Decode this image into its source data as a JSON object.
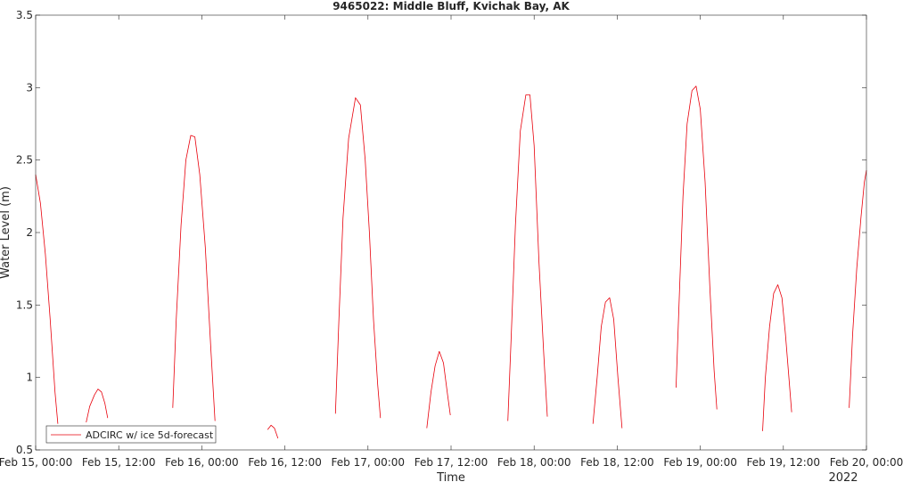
{
  "chart_data": {
    "type": "line",
    "title": "9465022: Middle Bluff, Kvichak Bay, AK",
    "xlabel": "Time",
    "ylabel": "Water Level (m)",
    "ylim": [
      0.5,
      3.5
    ],
    "yticks": [
      0.5,
      1,
      1.5,
      2,
      2.5,
      3,
      3.5
    ],
    "ytick_labels": [
      "0.5",
      "1",
      "1.5",
      "2",
      "2.5",
      "3",
      "3.5"
    ],
    "xlim_hours": [
      0,
      120
    ],
    "xtick_labels": [
      "Feb 15, 00:00",
      "Feb 15, 12:00",
      "Feb 16, 00:00",
      "Feb 16, 12:00",
      "Feb 17, 00:00",
      "Feb 17, 12:00",
      "Feb 18, 00:00",
      "Feb 18, 12:00",
      "Feb 19, 00:00",
      "Feb 19, 12:00",
      "Feb 20, 00:00"
    ],
    "xaxis_secondary_label": "2022",
    "grid": false,
    "legend_position": "bottom-left",
    "series": [
      {
        "name": "ADCIRC w/ ice 5d-forecast",
        "color": "#e8000b",
        "segments": [
          [
            [
              0.0,
              2.4
            ],
            [
              0.7,
              2.2
            ],
            [
              1.4,
              1.85
            ],
            [
              2.1,
              1.4
            ],
            [
              2.8,
              0.9
            ],
            [
              3.2,
              0.68
            ]
          ],
          [
            [
              7.3,
              0.69
            ],
            [
              7.8,
              0.8
            ],
            [
              8.5,
              0.88
            ],
            [
              9.0,
              0.92
            ],
            [
              9.5,
              0.9
            ],
            [
              10.0,
              0.82
            ],
            [
              10.4,
              0.72
            ]
          ],
          [
            [
              19.8,
              0.79
            ],
            [
              20.3,
              1.4
            ],
            [
              21.0,
              2.05
            ],
            [
              21.7,
              2.5
            ],
            [
              22.4,
              2.67
            ],
            [
              23.0,
              2.66
            ],
            [
              23.7,
              2.4
            ],
            [
              24.5,
              1.9
            ],
            [
              25.3,
              1.2
            ],
            [
              25.9,
              0.7
            ]
          ],
          [
            [
              33.5,
              0.64
            ],
            [
              34.0,
              0.67
            ],
            [
              34.5,
              0.65
            ],
            [
              35.0,
              0.58
            ]
          ],
          [
            [
              43.3,
              0.75
            ],
            [
              43.8,
              1.4
            ],
            [
              44.4,
              2.1
            ],
            [
              45.2,
              2.65
            ],
            [
              46.2,
              2.93
            ],
            [
              46.9,
              2.88
            ],
            [
              47.6,
              2.5
            ],
            [
              48.2,
              2.0
            ],
            [
              48.8,
              1.4
            ],
            [
              49.4,
              0.95
            ],
            [
              49.8,
              0.72
            ]
          ],
          [
            [
              56.5,
              0.65
            ],
            [
              57.1,
              0.9
            ],
            [
              57.7,
              1.08
            ],
            [
              58.3,
              1.18
            ],
            [
              58.9,
              1.1
            ],
            [
              59.5,
              0.88
            ],
            [
              59.9,
              0.74
            ]
          ],
          [
            [
              68.2,
              0.7
            ],
            [
              68.7,
              1.3
            ],
            [
              69.3,
              2.05
            ],
            [
              70.0,
              2.7
            ],
            [
              70.8,
              2.95
            ],
            [
              71.4,
              2.95
            ],
            [
              72.0,
              2.6
            ],
            [
              72.7,
              1.8
            ],
            [
              73.4,
              1.15
            ],
            [
              73.9,
              0.73
            ]
          ],
          [
            [
              80.5,
              0.68
            ],
            [
              81.1,
              1.0
            ],
            [
              81.7,
              1.35
            ],
            [
              82.3,
              1.52
            ],
            [
              82.9,
              1.55
            ],
            [
              83.5,
              1.4
            ],
            [
              84.1,
              1.0
            ],
            [
              84.7,
              0.65
            ]
          ],
          [
            [
              92.5,
              0.93
            ],
            [
              93.0,
              1.6
            ],
            [
              93.5,
              2.25
            ],
            [
              94.1,
              2.75
            ],
            [
              94.8,
              2.98
            ],
            [
              95.4,
              3.01
            ],
            [
              96.0,
              2.85
            ],
            [
              96.7,
              2.35
            ],
            [
              97.4,
              1.6
            ],
            [
              98.0,
              1.05
            ],
            [
              98.4,
              0.78
            ]
          ],
          [
            [
              105.0,
              0.63
            ],
            [
              105.4,
              1.0
            ],
            [
              106.0,
              1.35
            ],
            [
              106.6,
              1.58
            ],
            [
              107.2,
              1.64
            ],
            [
              107.8,
              1.55
            ],
            [
              108.3,
              1.3
            ],
            [
              108.8,
              1.0
            ],
            [
              109.2,
              0.76
            ]
          ],
          [
            [
              117.5,
              0.79
            ],
            [
              118.0,
              1.3
            ],
            [
              118.6,
              1.75
            ],
            [
              119.2,
              2.1
            ],
            [
              119.7,
              2.35
            ],
            [
              120.0,
              2.43
            ]
          ]
        ]
      }
    ]
  }
}
